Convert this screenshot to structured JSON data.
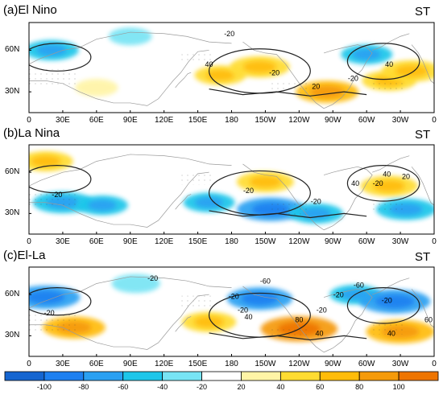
{
  "chart_data": [
    {
      "type": "heatmap",
      "panel": "(a)El Nino",
      "tag": "ST",
      "xticks": [
        "0",
        "30E",
        "60E",
        "90E",
        "120E",
        "150E",
        "180",
        "150W",
        "120W",
        "90W",
        "60W",
        "30W",
        "0"
      ],
      "yticks": [
        "60N",
        "30N"
      ],
      "contour_labels": [
        "-20",
        "40",
        "-20",
        "20",
        "40",
        "-20"
      ],
      "anomalies": [
        {
          "lon": 20,
          "lat": 60,
          "value": -45
        },
        {
          "lon": 60,
          "lat": 33,
          "value": 25
        },
        {
          "lon": 90,
          "lat": 70,
          "value": -25
        },
        {
          "lon": 170,
          "lat": 42,
          "value": 40
        },
        {
          "lon": 205,
          "lat": 48,
          "value": 55
        },
        {
          "lon": 265,
          "lat": 30,
          "value": 60
        },
        {
          "lon": 300,
          "lat": 57,
          "value": -40
        },
        {
          "lon": 320,
          "lat": 38,
          "value": 45
        },
        {
          "lon": 340,
          "lat": 45,
          "value": 55
        }
      ]
    },
    {
      "type": "heatmap",
      "panel": "(b)La Nina",
      "tag": "ST",
      "xticks": [
        "0",
        "30E",
        "60E",
        "90E",
        "120E",
        "150E",
        "180",
        "150W",
        "120W",
        "90W",
        "60W",
        "30W",
        "0"
      ],
      "yticks": [
        "60N",
        "30N"
      ],
      "contour_labels": [
        "40",
        "-20",
        "-20",
        "-20",
        "40",
        "-20",
        "20"
      ],
      "anomalies": [
        {
          "lon": 15,
          "lat": 68,
          "value": 45
        },
        {
          "lon": 30,
          "lat": 38,
          "value": -55
        },
        {
          "lon": 65,
          "lat": 36,
          "value": -40
        },
        {
          "lon": 160,
          "lat": 38,
          "value": -40
        },
        {
          "lon": 210,
          "lat": 53,
          "value": 50
        },
        {
          "lon": 215,
          "lat": 33,
          "value": -70
        },
        {
          "lon": 255,
          "lat": 30,
          "value": -45
        },
        {
          "lon": 320,
          "lat": 50,
          "value": 50
        },
        {
          "lon": 335,
          "lat": 33,
          "value": -55
        }
      ]
    },
    {
      "type": "heatmap",
      "panel": "(c)El-La",
      "tag": "ST",
      "xticks": [
        "0",
        "30E",
        "60E",
        "90E",
        "120E",
        "150E",
        "180",
        "150W",
        "120W",
        "90W",
        "60W",
        "30W",
        "0"
      ],
      "yticks": [
        "60N",
        "30N"
      ],
      "contour_labels": [
        "-20",
        "-20",
        "-20",
        "-60",
        "-20",
        "40",
        "80",
        "-20",
        "-60",
        "-20",
        "40",
        "40",
        "60",
        "-20"
      ],
      "anomalies": [
        {
          "lon": 15,
          "lat": 58,
          "value": -70
        },
        {
          "lon": 40,
          "lat": 36,
          "value": 60
        },
        {
          "lon": 95,
          "lat": 68,
          "value": -35
        },
        {
          "lon": 160,
          "lat": 40,
          "value": 45
        },
        {
          "lon": 205,
          "lat": 57,
          "value": -65
        },
        {
          "lon": 240,
          "lat": 35,
          "value": 85
        },
        {
          "lon": 290,
          "lat": 60,
          "value": -40
        },
        {
          "lon": 325,
          "lat": 55,
          "value": -75
        },
        {
          "lon": 330,
          "lat": 33,
          "value": 70
        }
      ]
    }
  ],
  "colorbar": {
    "levels": [
      "-100",
      "-80",
      "-60",
      "-40",
      "-20",
      "20",
      "40",
      "60",
      "80",
      "100"
    ],
    "colors": [
      "#1565d0",
      "#1e80f0",
      "#2aa0f2",
      "#1ec6ea",
      "#78e4f4",
      "#ffffff",
      "#fff4a6",
      "#ffdc32",
      "#ffbc0a",
      "#f59a0a",
      "#ee7400"
    ]
  },
  "style": {
    "neg_colors": [
      "#78e4f4",
      "#1ec6ea",
      "#2aa0f2",
      "#1e80f0",
      "#1565d0"
    ],
    "pos_colors": [
      "#fff4a6",
      "#ffdc32",
      "#ffbc0a",
      "#f59a0a",
      "#ee7400"
    ],
    "contour_color": "#222222",
    "coast_color": "#9a9a9a"
  }
}
